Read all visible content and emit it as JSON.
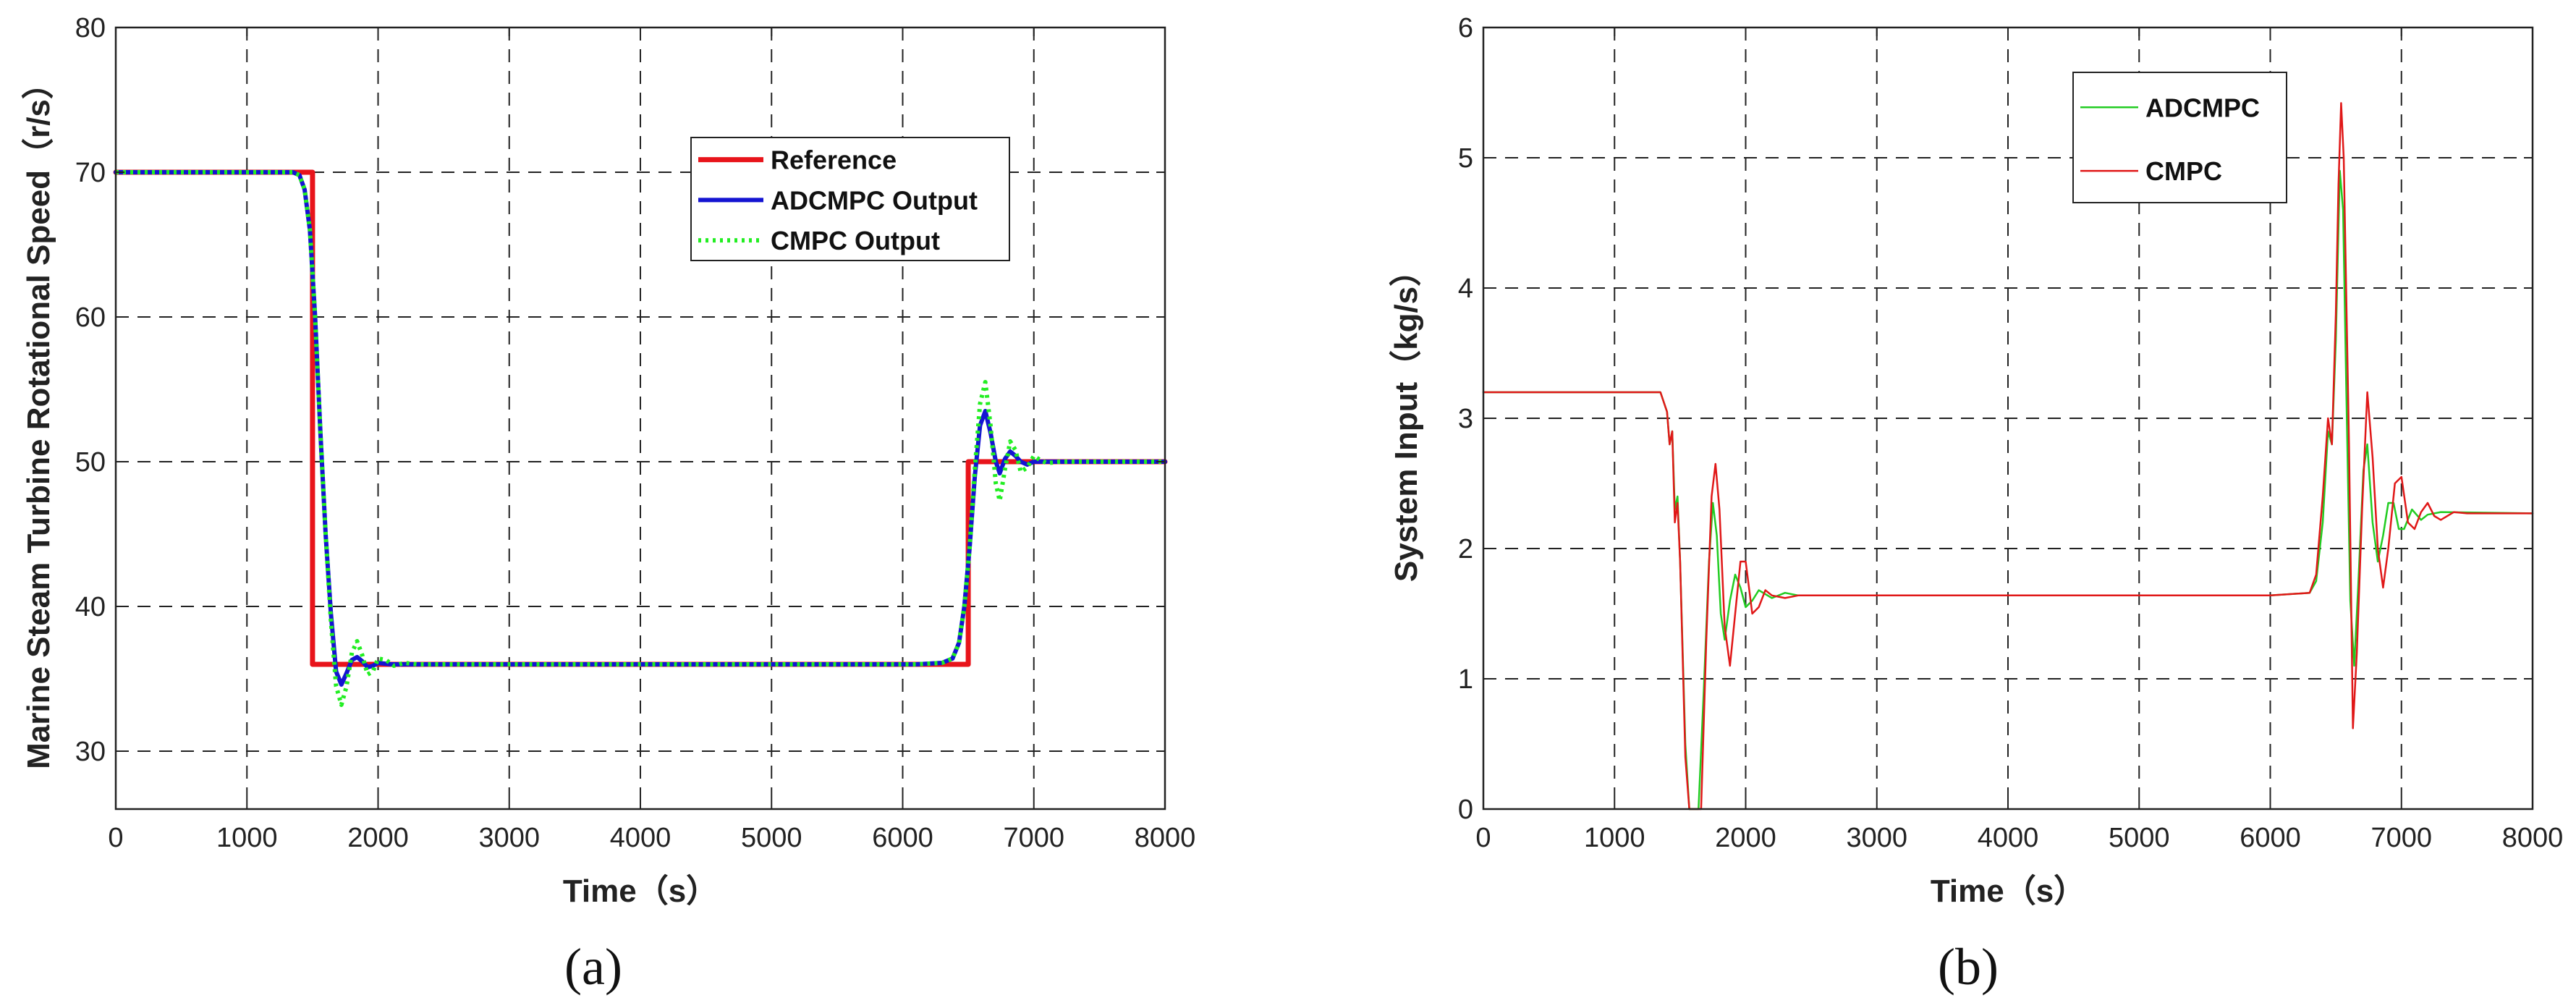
{
  "chart_data": [
    {
      "type": "line",
      "caption": "(a)",
      "xlabel": "Time（s）",
      "ylabel": "Marine Steam Turbine Rotational Speed（r/s）",
      "xlim": [
        0,
        8000
      ],
      "ylim": [
        26,
        80
      ],
      "xticks": [
        0,
        1000,
        2000,
        3000,
        4000,
        5000,
        6000,
        7000,
        8000
      ],
      "yticks": [
        30,
        40,
        50,
        60,
        70,
        80
      ],
      "grid": true,
      "legend_position": "upper-right",
      "series": [
        {
          "name": "Reference",
          "color": "#e8141b",
          "style": "solid",
          "points": [
            [
              0,
              70
            ],
            [
              1500,
              70
            ],
            [
              1500,
              36
            ],
            [
              6500,
              36
            ],
            [
              6500,
              50
            ],
            [
              8000,
              50
            ]
          ]
        },
        {
          "name": "ADCMPC Output",
          "color": "#1414d2",
          "style": "solid",
          "points": [
            [
              0,
              70
            ],
            [
              1350,
              70
            ],
            [
              1400,
              69.8
            ],
            [
              1440,
              68.8
            ],
            [
              1480,
              66
            ],
            [
              1520,
              60
            ],
            [
              1560,
              52
            ],
            [
              1600,
              45
            ],
            [
              1640,
              39.5
            ],
            [
              1680,
              35.5
            ],
            [
              1720,
              34.6
            ],
            [
              1760,
              35.4
            ],
            [
              1800,
              36.3
            ],
            [
              1840,
              36.5
            ],
            [
              1880,
              36.2
            ],
            [
              1920,
              35.8
            ],
            [
              1960,
              35.9
            ],
            [
              2000,
              36.1
            ],
            [
              2100,
              36
            ],
            [
              6100,
              36
            ],
            [
              6300,
              36.1
            ],
            [
              6380,
              36.4
            ],
            [
              6430,
              37.5
            ],
            [
              6470,
              40
            ],
            [
              6510,
              44
            ],
            [
              6550,
              49
            ],
            [
              6590,
              52.5
            ],
            [
              6630,
              53.5
            ],
            [
              6670,
              52
            ],
            [
              6710,
              50
            ],
            [
              6740,
              49.2
            ],
            [
              6780,
              50.2
            ],
            [
              6820,
              50.7
            ],
            [
              6860,
              50.4
            ],
            [
              6900,
              50
            ],
            [
              6950,
              49.8
            ],
            [
              7000,
              50
            ],
            [
              8000,
              50
            ]
          ]
        },
        {
          "name": "CMPC Output",
          "color": "#22ee22",
          "style": "dotted",
          "points": [
            [
              0,
              70
            ],
            [
              1350,
              70
            ],
            [
              1400,
              69.8
            ],
            [
              1440,
              68.8
            ],
            [
              1480,
              66
            ],
            [
              1520,
              60
            ],
            [
              1560,
              52
            ],
            [
              1600,
              45
            ],
            [
              1640,
              39
            ],
            [
              1680,
              34.5
            ],
            [
              1720,
              33.2
            ],
            [
              1760,
              34.5
            ],
            [
              1800,
              36.8
            ],
            [
              1840,
              37.6
            ],
            [
              1880,
              36.6
            ],
            [
              1920,
              35.3
            ],
            [
              1960,
              35.5
            ],
            [
              2000,
              36.4
            ],
            [
              2060,
              36.3
            ],
            [
              2120,
              35.9
            ],
            [
              2200,
              36.1
            ],
            [
              2300,
              36
            ],
            [
              6100,
              36
            ],
            [
              6300,
              36.1
            ],
            [
              6380,
              36.4
            ],
            [
              6430,
              37.5
            ],
            [
              6470,
              40
            ],
            [
              6510,
              44
            ],
            [
              6550,
              49.5
            ],
            [
              6590,
              54
            ],
            [
              6630,
              55.5
            ],
            [
              6670,
              52.5
            ],
            [
              6710,
              48.5
            ],
            [
              6740,
              47.3
            ],
            [
              6780,
              49.5
            ],
            [
              6820,
              51.4
            ],
            [
              6860,
              50.8
            ],
            [
              6900,
              49.3
            ],
            [
              6950,
              49.6
            ],
            [
              7000,
              50.4
            ],
            [
              7050,
              50.1
            ],
            [
              7100,
              49.9
            ],
            [
              7200,
              50
            ],
            [
              8000,
              50
            ]
          ]
        }
      ]
    },
    {
      "type": "line",
      "caption": "(b)",
      "xlabel": "Time（s）",
      "ylabel": "System Input（kg/s）",
      "xlim": [
        0,
        8000
      ],
      "ylim": [
        0,
        6
      ],
      "xticks": [
        0,
        1000,
        2000,
        3000,
        4000,
        5000,
        6000,
        7000,
        8000
      ],
      "yticks": [
        0,
        1,
        2,
        3,
        4,
        5,
        6
      ],
      "grid": true,
      "legend_position": "upper-right",
      "series": [
        {
          "name": "ADCMPC",
          "color": "#22cc22",
          "style": "solid",
          "points": [
            [
              0,
              3.2
            ],
            [
              1350,
              3.2
            ],
            [
              1400,
              3.05
            ],
            [
              1420,
              2.8
            ],
            [
              1440,
              2.9
            ],
            [
              1460,
              2.3
            ],
            [
              1480,
              2.4
            ],
            [
              1500,
              1.9
            ],
            [
              1540,
              0.5
            ],
            [
              1570,
              0
            ],
            [
              1640,
              0
            ],
            [
              1680,
              0.9
            ],
            [
              1720,
              1.9
            ],
            [
              1750,
              2.35
            ],
            [
              1780,
              2.1
            ],
            [
              1810,
              1.5
            ],
            [
              1840,
              1.3
            ],
            [
              1880,
              1.6
            ],
            [
              1920,
              1.8
            ],
            [
              1960,
              1.7
            ],
            [
              2000,
              1.55
            ],
            [
              2050,
              1.6
            ],
            [
              2100,
              1.68
            ],
            [
              2200,
              1.62
            ],
            [
              2300,
              1.66
            ],
            [
              2400,
              1.64
            ],
            [
              6000,
              1.64
            ],
            [
              6300,
              1.66
            ],
            [
              6350,
              1.75
            ],
            [
              6400,
              2.2
            ],
            [
              6440,
              2.9
            ],
            [
              6470,
              2.8
            ],
            [
              6500,
              3.6
            ],
            [
              6530,
              4.9
            ],
            [
              6555,
              4.6
            ],
            [
              6580,
              3.2
            ],
            [
              6610,
              1.6
            ],
            [
              6640,
              1.1
            ],
            [
              6670,
              1.7
            ],
            [
              6710,
              2.6
            ],
            [
              6740,
              2.8
            ],
            [
              6780,
              2.2
            ],
            [
              6820,
              1.9
            ],
            [
              6860,
              2.1
            ],
            [
              6900,
              2.35
            ],
            [
              6940,
              2.35
            ],
            [
              6980,
              2.15
            ],
            [
              7020,
              2.15
            ],
            [
              7080,
              2.3
            ],
            [
              7150,
              2.22
            ],
            [
              7200,
              2.26
            ],
            [
              7300,
              2.28
            ],
            [
              8000,
              2.27
            ]
          ]
        },
        {
          "name": "CMPC",
          "color": "#e01818",
          "style": "solid",
          "points": [
            [
              0,
              3.2
            ],
            [
              1350,
              3.2
            ],
            [
              1400,
              3.05
            ],
            [
              1420,
              2.8
            ],
            [
              1440,
              2.9
            ],
            [
              1460,
              2.2
            ],
            [
              1480,
              2.35
            ],
            [
              1500,
              1.9
            ],
            [
              1540,
              0.4
            ],
            [
              1570,
              0
            ],
            [
              1660,
              0
            ],
            [
              1700,
              1.3
            ],
            [
              1740,
              2.4
            ],
            [
              1770,
              2.65
            ],
            [
              1800,
              2.3
            ],
            [
              1840,
              1.4
            ],
            [
              1880,
              1.1
            ],
            [
              1920,
              1.5
            ],
            [
              1960,
              1.9
            ],
            [
              2000,
              1.9
            ],
            [
              2050,
              1.5
            ],
            [
              2100,
              1.55
            ],
            [
              2150,
              1.68
            ],
            [
              2200,
              1.64
            ],
            [
              2300,
              1.62
            ],
            [
              2400,
              1.64
            ],
            [
              6000,
              1.64
            ],
            [
              6300,
              1.66
            ],
            [
              6350,
              1.8
            ],
            [
              6400,
              2.4
            ],
            [
              6440,
              3.0
            ],
            [
              6470,
              2.8
            ],
            [
              6500,
              3.8
            ],
            [
              6520,
              4.8
            ],
            [
              6540,
              5.42
            ],
            [
              6560,
              5.0
            ],
            [
              6600,
              2.8
            ],
            [
              6630,
              0.62
            ],
            [
              6660,
              1.2
            ],
            [
              6700,
              2.3
            ],
            [
              6740,
              3.2
            ],
            [
              6780,
              2.7
            ],
            [
              6820,
              2.0
            ],
            [
              6860,
              1.7
            ],
            [
              6900,
              2.0
            ],
            [
              6950,
              2.5
            ],
            [
              7000,
              2.55
            ],
            [
              7050,
              2.2
            ],
            [
              7100,
              2.15
            ],
            [
              7150,
              2.28
            ],
            [
              7200,
              2.35
            ],
            [
              7250,
              2.25
            ],
            [
              7300,
              2.22
            ],
            [
              7400,
              2.28
            ],
            [
              7500,
              2.27
            ],
            [
              8000,
              2.27
            ]
          ]
        }
      ]
    }
  ]
}
